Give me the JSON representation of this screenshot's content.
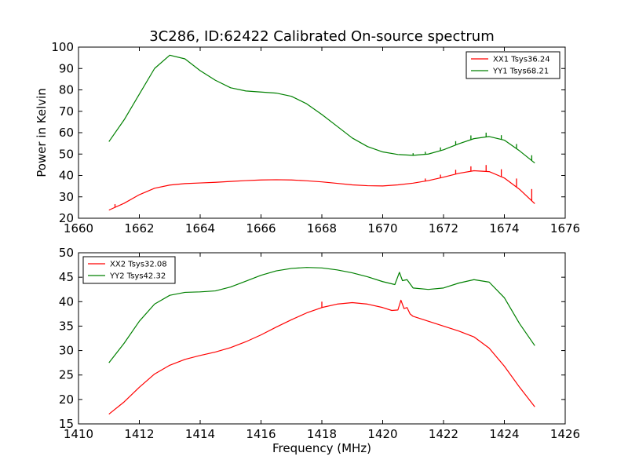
{
  "figure": {
    "title": "3C286, ID:62422 Calibrated On-source spectrum",
    "ylabel": "Power in Kelvin",
    "xlabel": "Frequency (MHz)"
  },
  "chart_data": [
    {
      "type": "line",
      "xlim": [
        1660,
        1676
      ],
      "ylim": [
        20,
        100
      ],
      "xticks": [
        "1660",
        "1662",
        "1664",
        "1666",
        "1668",
        "1670",
        "1672",
        "1674",
        "1676"
      ],
      "yticks": [
        "20",
        "30",
        "40",
        "50",
        "60",
        "70",
        "80",
        "90",
        "100"
      ],
      "legend": "top-right",
      "grid": false,
      "series": [
        {
          "name": "XX1 Tsys36.24",
          "color": "#ff0000",
          "points": [
            [
              1661.0,
              23.8
            ],
            [
              1661.5,
              27
            ],
            [
              1662.0,
              31
            ],
            [
              1662.5,
              34
            ],
            [
              1663.0,
              35.5
            ],
            [
              1663.5,
              36.2
            ],
            [
              1664.0,
              36.5
            ],
            [
              1664.5,
              36.8
            ],
            [
              1665.0,
              37.2
            ],
            [
              1665.5,
              37.6
            ],
            [
              1666.0,
              37.9
            ],
            [
              1666.5,
              38
            ],
            [
              1667.0,
              37.9
            ],
            [
              1667.5,
              37.5
            ],
            [
              1668.0,
              37
            ],
            [
              1668.5,
              36.3
            ],
            [
              1669.0,
              35.6
            ],
            [
              1669.5,
              35.2
            ],
            [
              1670.0,
              35.1
            ],
            [
              1670.5,
              35.6
            ],
            [
              1671.0,
              36.4
            ],
            [
              1671.5,
              37.6
            ],
            [
              1672.0,
              39.2
            ],
            [
              1672.5,
              41
            ],
            [
              1673.0,
              42.2
            ],
            [
              1673.5,
              41.8
            ],
            [
              1674.0,
              38.8
            ],
            [
              1674.5,
              33.5
            ],
            [
              1675.0,
              26.8
            ]
          ],
          "spikes": [
            [
              1661.2,
              1.5
            ],
            [
              1671.4,
              1.2
            ],
            [
              1671.9,
              1.5
            ],
            [
              1672.4,
              2
            ],
            [
              1672.9,
              2.3
            ],
            [
              1673.4,
              3
            ],
            [
              1673.9,
              3.5
            ],
            [
              1674.4,
              4
            ],
            [
              1674.9,
              5.5
            ]
          ]
        },
        {
          "name": "YY1 Tsys68.21",
          "color": "#008000",
          "points": [
            [
              1661.0,
              55.8
            ],
            [
              1661.5,
              66
            ],
            [
              1662.0,
              78
            ],
            [
              1662.5,
              90
            ],
            [
              1663.0,
              96.2
            ],
            [
              1663.5,
              94.5
            ],
            [
              1664.0,
              89
            ],
            [
              1664.5,
              84.5
            ],
            [
              1665.0,
              81
            ],
            [
              1665.5,
              79.5
            ],
            [
              1666.0,
              79
            ],
            [
              1666.5,
              78.5
            ],
            [
              1667.0,
              77
            ],
            [
              1667.5,
              73.5
            ],
            [
              1668.0,
              68.5
            ],
            [
              1668.5,
              63
            ],
            [
              1669.0,
              57.5
            ],
            [
              1669.5,
              53.5
            ],
            [
              1670.0,
              51
            ],
            [
              1670.5,
              49.8
            ],
            [
              1671.0,
              49.4
            ],
            [
              1671.5,
              50
            ],
            [
              1672.0,
              52
            ],
            [
              1672.5,
              54.8
            ],
            [
              1673.0,
              57.2
            ],
            [
              1673.5,
              58.2
            ],
            [
              1674.0,
              56.5
            ],
            [
              1674.5,
              51.5
            ],
            [
              1675.0,
              45.8
            ]
          ],
          "spikes": [
            [
              1671.0,
              1
            ],
            [
              1671.4,
              1.2
            ],
            [
              1671.9,
              1.5
            ],
            [
              1672.4,
              1.8
            ],
            [
              1672.9,
              2
            ],
            [
              1673.4,
              2
            ],
            [
              1673.9,
              2
            ],
            [
              1674.4,
              2.2
            ],
            [
              1674.9,
              2.5
            ]
          ]
        }
      ]
    },
    {
      "type": "line",
      "xlim": [
        1410,
        1426
      ],
      "ylim": [
        15,
        50
      ],
      "xticks": [
        "1410",
        "1412",
        "1414",
        "1416",
        "1418",
        "1420",
        "1422",
        "1424",
        "1426"
      ],
      "yticks": [
        "15",
        "20",
        "25",
        "30",
        "35",
        "40",
        "45",
        "50"
      ],
      "legend": "top-left",
      "grid": false,
      "series": [
        {
          "name": "XX2 Tsys32.08",
          "color": "#ff0000",
          "points": [
            [
              1411.0,
              17
            ],
            [
              1411.5,
              19.5
            ],
            [
              1412.0,
              22.5
            ],
            [
              1412.5,
              25.2
            ],
            [
              1413.0,
              27
            ],
            [
              1413.5,
              28.2
            ],
            [
              1414.0,
              29
            ],
            [
              1414.5,
              29.7
            ],
            [
              1415.0,
              30.6
            ],
            [
              1415.5,
              31.8
            ],
            [
              1416.0,
              33.2
            ],
            [
              1416.5,
              34.8
            ],
            [
              1417.0,
              36.3
            ],
            [
              1417.5,
              37.7
            ],
            [
              1418.0,
              38.8
            ],
            [
              1418.5,
              39.5
            ],
            [
              1419.0,
              39.8
            ],
            [
              1419.5,
              39.5
            ],
            [
              1420.0,
              38.8
            ],
            [
              1420.3,
              38.2
            ],
            [
              1420.5,
              38.3
            ],
            [
              1420.6,
              40.3
            ],
            [
              1420.7,
              38.6
            ],
            [
              1420.8,
              38.8
            ],
            [
              1420.9,
              37.5
            ],
            [
              1421.0,
              37
            ],
            [
              1421.5,
              36
            ],
            [
              1422.0,
              35
            ],
            [
              1422.5,
              34
            ],
            [
              1423.0,
              32.8
            ],
            [
              1423.5,
              30.5
            ],
            [
              1424.0,
              26.8
            ],
            [
              1424.5,
              22.5
            ],
            [
              1425.0,
              18.5
            ]
          ],
          "spikes": [
            [
              1418.0,
              1.2
            ]
          ]
        },
        {
          "name": "YY2 Tsys42.32",
          "color": "#008000",
          "points": [
            [
              1411.0,
              27.5
            ],
            [
              1411.5,
              31.5
            ],
            [
              1412.0,
              36
            ],
            [
              1412.5,
              39.5
            ],
            [
              1413.0,
              41.3
            ],
            [
              1413.5,
              41.9
            ],
            [
              1414.0,
              42
            ],
            [
              1414.5,
              42.2
            ],
            [
              1415.0,
              43
            ],
            [
              1415.5,
              44.2
            ],
            [
              1416.0,
              45.4
            ],
            [
              1416.5,
              46.3
            ],
            [
              1417.0,
              46.8
            ],
            [
              1417.5,
              47
            ],
            [
              1418.0,
              46.9
            ],
            [
              1418.5,
              46.5
            ],
            [
              1419.0,
              45.9
            ],
            [
              1419.5,
              45.1
            ],
            [
              1420.0,
              44.1
            ],
            [
              1420.4,
              43.5
            ],
            [
              1420.55,
              46
            ],
            [
              1420.65,
              44.3
            ],
            [
              1420.8,
              44.5
            ],
            [
              1421.0,
              42.8
            ],
            [
              1421.5,
              42.5
            ],
            [
              1422.0,
              42.8
            ],
            [
              1422.5,
              43.8
            ],
            [
              1423.0,
              44.5
            ],
            [
              1423.5,
              44
            ],
            [
              1424.0,
              40.8
            ],
            [
              1424.5,
              35.5
            ],
            [
              1425.0,
              31
            ]
          ],
          "spikes": []
        }
      ]
    }
  ]
}
